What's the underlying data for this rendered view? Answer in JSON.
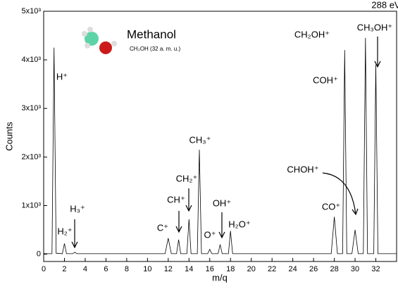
{
  "chart_data": {
    "type": "line",
    "title": "Methanol",
    "subtitle": "CH₃OH (32 a. m. u.)",
    "energy_label": "288 eV",
    "x_label": "m/q",
    "y_label": "Counts",
    "color": "#000000",
    "xlim": [
      0,
      34
    ],
    "xticks": [
      0,
      2,
      4,
      6,
      8,
      10,
      12,
      14,
      16,
      18,
      20,
      22,
      24,
      26,
      28,
      30,
      32
    ],
    "ylim": [
      -150,
      5000
    ],
    "yticks": [
      0,
      {
        "value": 1000,
        "label": "1x10³"
      },
      {
        "value": 2000,
        "label": "2x10³"
      },
      {
        "value": 3000,
        "label": "3x10³"
      },
      {
        "value": 4000,
        "label": "4x10³"
      },
      {
        "value": 5000,
        "label": "5x10³"
      }
    ],
    "x": [
      0,
      0.8,
      1,
      1.2,
      1.8,
      2,
      2.2,
      2.8,
      3,
      3.2,
      11.7,
      12,
      12.3,
      12.8,
      13,
      13.2,
      13.8,
      14,
      14.2,
      14.8,
      15,
      15.2,
      15.8,
      16,
      16.2,
      16.8,
      17,
      17.2,
      17.8,
      18,
      18.2,
      27.7,
      28,
      28.3,
      28.8,
      29,
      29.2,
      29.7,
      30,
      30.3,
      30.8,
      31,
      31.2,
      31.8,
      32,
      32.2,
      34
    ],
    "values": [
      10,
      10,
      4250,
      20,
      10,
      220,
      10,
      10,
      40,
      10,
      10,
      330,
      10,
      10,
      300,
      10,
      10,
      720,
      10,
      10,
      2150,
      10,
      10,
      100,
      10,
      10,
      200,
      10,
      10,
      480,
      10,
      10,
      770,
      10,
      10,
      4200,
      10,
      10,
      500,
      10,
      10,
      4450,
      10,
      10,
      3900,
      10,
      10
    ],
    "annotations": [
      "H⁺",
      "H₂⁺",
      "H₃⁺",
      "C⁺",
      "CH⁺",
      "CH₂⁺",
      "CH₃⁺",
      "O⁺",
      "OH⁺",
      "H₂O⁺",
      "CO⁺",
      "COH⁺",
      "CHOH⁺",
      "CH₂OH⁺",
      "CH₃OH⁺"
    ]
  }
}
